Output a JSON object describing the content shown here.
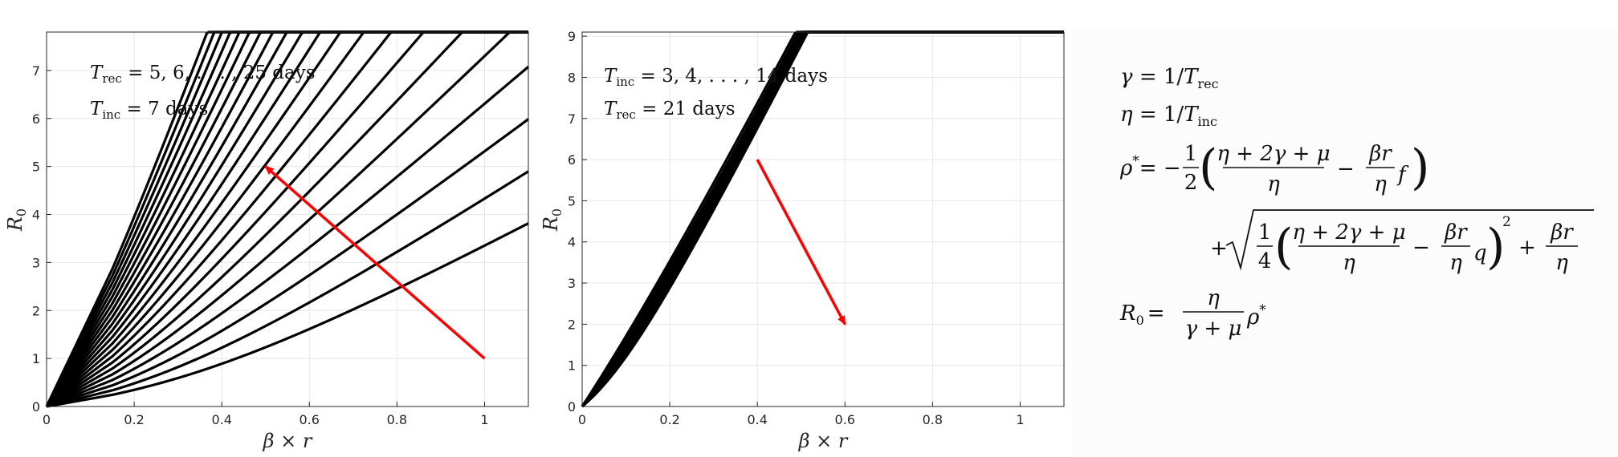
{
  "chart_data": [
    {
      "type": "line",
      "title": "",
      "xlabel": "β × r",
      "ylabel": "R0",
      "xlim": [
        0,
        1.1
      ],
      "ylim": [
        0,
        7.8
      ],
      "xticks": [
        0,
        0.2,
        0.4,
        0.6,
        0.8,
        1
      ],
      "xtick_labels": [
        "0",
        "0.2",
        "0.4",
        "0.6",
        "0.8",
        "1"
      ],
      "yticks": [
        0,
        1,
        2,
        3,
        4,
        5,
        6,
        7
      ],
      "ytick_labels": [
        "0",
        "1",
        "2",
        "3",
        "4",
        "5",
        "6",
        "7"
      ],
      "grid": true,
      "annotations": [
        "T_rec = 5, 6, . . . , 25 days",
        "T_inc = 7 days"
      ],
      "curve_family": {
        "parameter": "T_rec",
        "values": [
          5,
          6,
          7,
          8,
          9,
          10,
          11,
          12,
          13,
          14,
          15,
          16,
          17,
          18,
          19,
          20,
          21,
          22,
          23,
          24,
          25
        ],
        "T_inc": 7,
        "kink_x": 0.15
      },
      "series_color": "#000000",
      "arrow": {
        "from": [
          1.0,
          1.0
        ],
        "to": [
          0.5,
          5.0
        ],
        "color": "#ff0000"
      }
    },
    {
      "type": "line",
      "title": "",
      "xlabel": "β × r",
      "ylabel": "R0",
      "xlim": [
        0,
        1.1
      ],
      "ylim": [
        0,
        9.1
      ],
      "xticks": [
        0,
        0.2,
        0.4,
        0.6,
        0.8,
        1
      ],
      "xtick_labels": [
        "0",
        "0.2",
        "0.4",
        "0.6",
        "0.8",
        "1"
      ],
      "yticks": [
        0,
        1,
        2,
        3,
        4,
        5,
        6,
        7,
        8,
        9
      ],
      "ytick_labels": [
        "0",
        "1",
        "2",
        "3",
        "4",
        "5",
        "6",
        "7",
        "8",
        "9"
      ],
      "grid": true,
      "annotations": [
        "T_inc = 3, 4, . . . , 14 days",
        "T_rec = 21 days"
      ],
      "curve_family": {
        "parameter": "T_inc",
        "values": [
          3,
          4,
          5,
          6,
          7,
          8,
          9,
          10,
          11,
          12,
          13,
          14
        ],
        "T_rec": 21
      },
      "series_color": "#000000",
      "arrow": {
        "from": [
          0.4,
          6.0
        ],
        "to": [
          0.6,
          2.0
        ],
        "color": "#ff0000"
      }
    }
  ],
  "formulas": {
    "gamma": "γ = 1/T_rec",
    "eta": "η = 1/T_inc",
    "rho_star": "ρ* = −(1/2)((η + 2γ + μ)/η − (βr/η) f) + √((1/4)((η + 2γ + μ)/η − (βr/η) q)² + βr/η)",
    "R0": "R₀ = (η/(γ + μ)) ρ*"
  },
  "formula_parts": {
    "gamma_lhs": "γ",
    "gamma_rhs": "= 1/",
    "gamma_T": "T",
    "gamma_sub": "rec",
    "eta_lhs": "η",
    "eta_rhs": "= 1/",
    "eta_T": "T",
    "eta_sub": "inc",
    "rho_lhs": "ρ",
    "rho_star": "*",
    "rho_eq": "= −",
    "half_num": "1",
    "half_den": "2",
    "frac_num": "η + 2γ + μ",
    "frac_den": "η",
    "minus": "−",
    "br_num": "βr",
    "br_den": "η",
    "f": "f",
    "plus": "+",
    "quarter_num": "1",
    "quarter_den": "4",
    "q": "q",
    "square": "2",
    "R0_lhs": "R",
    "R0_sub": "0",
    "R0_eq": "=",
    "R0_num": "η",
    "R0_den": "γ + μ",
    "R0_rho": "ρ"
  }
}
